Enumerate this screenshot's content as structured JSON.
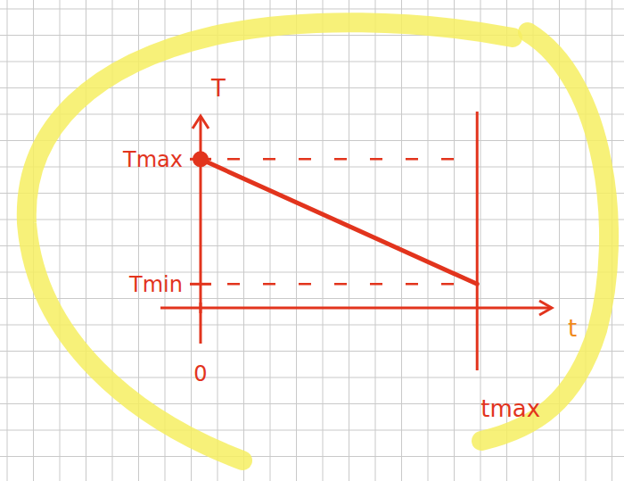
{
  "chart_data": {
    "type": "line",
    "x_label": "t",
    "y_label": "T",
    "x": [
      0,
      1
    ],
    "series": [
      {
        "name": null,
        "color": "#e2341d",
        "values": [
          1,
          0.16
        ],
        "marker": "circle",
        "line_style": "solid"
      }
    ],
    "xlim": [
      -0.145,
      1.27
    ],
    "ylim": [
      -0.24,
      1.29
    ],
    "xticks": [
      0,
      {
        "value": 1,
        "label": "tmax"
      }
    ],
    "yticks": [
      {
        "value": 0.16,
        "label": "Tmin"
      },
      {
        "value": 1,
        "label": "Tmax"
      }
    ]
  }
}
